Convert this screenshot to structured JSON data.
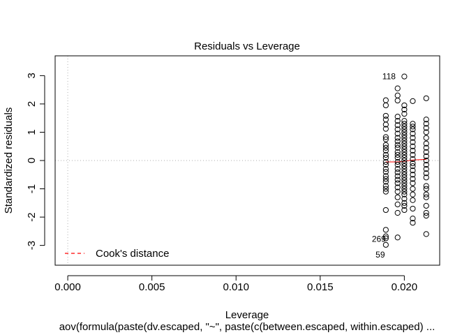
{
  "chart_data": {
    "type": "scatter",
    "title": "Residuals vs Leverage",
    "xlabel": "Leverage",
    "ylabel": "Standardized residuals",
    "subtitle": "aov(formula(paste(dv.escaped, \"~\", paste(c(between.escaped, within.escaped) ...",
    "xlim": [
      -0.00075,
      0.0221
    ],
    "ylim": [
      -3.7,
      3.7
    ],
    "xticks": [
      0.0,
      0.005,
      0.01,
      0.015,
      0.02
    ],
    "xtick_labels": [
      "0.000",
      "0.005",
      "0.010",
      "0.015",
      "0.020"
    ],
    "yticks": [
      -3,
      -2,
      -1,
      0,
      1,
      2,
      3
    ],
    "ytick_labels": [
      "-3",
      "-2",
      "-1",
      "0",
      "1",
      "2",
      "3"
    ],
    "grid": false,
    "legend": {
      "placement": "bottom-left",
      "entries": [
        {
          "label": "Cook's distance",
          "color": "#ff0000",
          "style": "dashed"
        }
      ]
    },
    "reference_lines": [
      {
        "axis": "y",
        "value": 0,
        "style": "dotted",
        "color": "#bebebe"
      },
      {
        "axis": "x",
        "value": 0,
        "style": "dotted",
        "color": "#bebebe"
      }
    ],
    "smoother": {
      "color": "#ff0000",
      "x": [
        0.0189,
        0.0196,
        0.02,
        0.0205,
        0.0213
      ],
      "y": [
        -0.05,
        -0.05,
        -0.03,
        0.02,
        0.04
      ]
    },
    "labeled_points": [
      {
        "label": "118",
        "x": 0.02,
        "y": 2.97
      },
      {
        "label": "269",
        "x": 0.0189,
        "y": -2.75
      },
      {
        "label": "59",
        "x": 0.0189,
        "y": -2.98
      }
    ],
    "columns": [
      {
        "x": 0.0189,
        "y": [
          2.13,
          1.95,
          1.58,
          1.45,
          1.27,
          1.12,
          0.83,
          0.75,
          0.55,
          0.45,
          0.35,
          0.2,
          0.1,
          -0.05,
          -0.15,
          -0.3,
          -0.4,
          -0.55,
          -0.65,
          -0.75,
          -0.9,
          -1.0,
          -1.1,
          -1.75,
          -2.45,
          -2.68,
          -2.75,
          -2.98
        ]
      },
      {
        "x": 0.0196,
        "y": [
          2.55,
          2.3,
          2.12,
          1.55,
          1.4,
          1.25,
          1.1,
          0.95,
          0.8,
          0.68,
          0.55,
          0.45,
          0.3,
          0.2,
          0.1,
          -0.05,
          -0.15,
          -0.3,
          -0.42,
          -0.55,
          -0.68,
          -0.8,
          -0.95,
          -1.1,
          -1.3,
          -1.55,
          -1.85,
          -2.72
        ]
      },
      {
        "x": 0.02,
        "y": [
          2.97,
          1.95,
          1.8,
          1.65,
          1.4,
          1.3,
          1.2,
          1.1,
          1.0,
          0.9,
          0.8,
          0.7,
          0.6,
          0.5,
          0.4,
          0.3,
          0.2,
          0.1,
          0.0,
          -0.1,
          -0.2,
          -0.3,
          -0.4,
          -0.5,
          -0.6,
          -0.7,
          -0.8,
          -0.9,
          -1.0,
          -1.1,
          -1.2,
          -1.35,
          -1.5,
          -1.6,
          -1.75
        ]
      },
      {
        "x": 0.0205,
        "y": [
          2.1,
          1.3,
          1.2,
          1.1,
          0.95,
          0.8,
          0.65,
          0.5,
          0.35,
          0.2,
          0.05,
          -0.1,
          -0.2,
          -0.35,
          -0.5,
          -0.65,
          -0.8,
          -1.0,
          -1.2,
          -1.4,
          -1.7,
          -2.05,
          -2.2
        ]
      },
      {
        "x": 0.0213,
        "y": [
          2.2,
          1.45,
          1.3,
          1.15,
          1.0,
          0.8,
          0.6,
          0.45,
          0.3,
          0.15,
          0.0,
          -0.15,
          -0.3,
          -0.45,
          -0.6,
          -0.9,
          -1.0,
          -1.2,
          -1.3,
          -1.6,
          -1.85,
          -1.95,
          -2.6
        ]
      }
    ]
  }
}
